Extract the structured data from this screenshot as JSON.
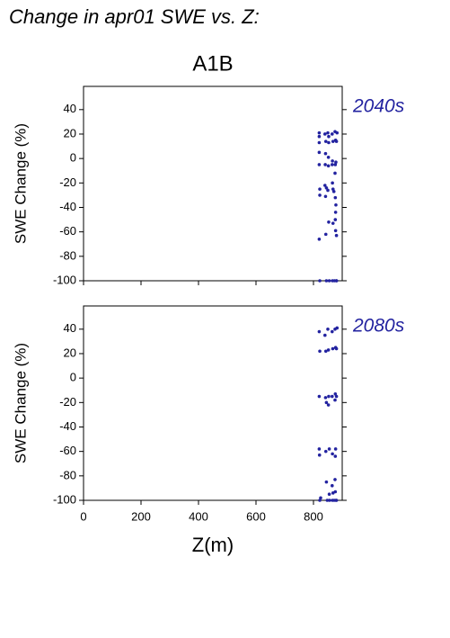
{
  "title": "Change in apr01 SWE vs. Z:",
  "subtitle": "A1B",
  "chart_data": [
    {
      "type": "scatter",
      "annotation": "2040s",
      "ylabel": "SWE Change (%)",
      "color": "#2323a0",
      "xlim": [
        0,
        900
      ],
      "xticks": [
        0,
        200,
        400,
        600,
        800
      ],
      "ylim": [
        -100,
        59
      ],
      "yticks": [
        -100,
        -80,
        -60,
        -40,
        -20,
        0,
        20,
        40
      ],
      "x": [
        820,
        820,
        820,
        820,
        820,
        822,
        822,
        820,
        822,
        840,
        843,
        842,
        841,
        840,
        842,
        845,
        843,
        845,
        850,
        853,
        853,
        852,
        852,
        850,
        853,
        855,
        865,
        868,
        866,
        865,
        866,
        868,
        868,
        866,
        875,
        877,
        876,
        875,
        876,
        878,
        877,
        876,
        877,
        880,
        880,
        882,
        880,
        878,
        880,
        873,
        871
      ],
      "values": [
        21,
        18,
        13,
        5,
        -5,
        -25,
        -30,
        -66,
        -100,
        20,
        14,
        4,
        -5,
        -22,
        -31,
        -24,
        -62,
        -100,
        21,
        18,
        13,
        1,
        -6,
        -26,
        -52,
        -100,
        20,
        14,
        -2,
        -5,
        -20,
        -25,
        -53,
        -100,
        22,
        15,
        -5,
        -12,
        -32,
        -38,
        -44,
        -50,
        -59,
        -63,
        -100,
        21,
        14,
        -3,
        -100,
        -100,
        -27
      ]
    },
    {
      "type": "scatter",
      "annotation": "2080s",
      "ylabel": "SWE Change (%)",
      "xlabel": "Z(m)",
      "color": "#2323a0",
      "xlim": [
        0,
        900
      ],
      "xticks": [
        0,
        200,
        400,
        600,
        800
      ],
      "ylim": [
        -100,
        59
      ],
      "yticks": [
        -100,
        -80,
        -60,
        -40,
        -20,
        0,
        20,
        40
      ],
      "x": [
        820,
        822,
        820,
        820,
        821,
        822,
        825,
        840,
        843,
        842,
        845,
        843,
        845,
        848,
        850,
        852,
        853,
        852,
        855,
        855,
        856,
        865,
        867,
        865,
        866,
        865,
        868,
        866,
        875,
        877,
        876,
        875,
        877,
        876,
        875,
        876,
        878,
        882,
        880,
        880,
        880,
        872
      ],
      "values": [
        38,
        22,
        -15,
        -58,
        -63,
        -100,
        -98,
        35,
        22,
        -16,
        -20,
        -60,
        -85,
        -100,
        40,
        23,
        -15,
        -22,
        -58,
        -95,
        -100,
        38,
        24,
        -15,
        -62,
        -88,
        -94,
        -100,
        40,
        25,
        -13,
        -18,
        -58,
        -64,
        -83,
        -93,
        -100,
        41,
        24,
        -15,
        -100,
        -100
      ]
    }
  ]
}
